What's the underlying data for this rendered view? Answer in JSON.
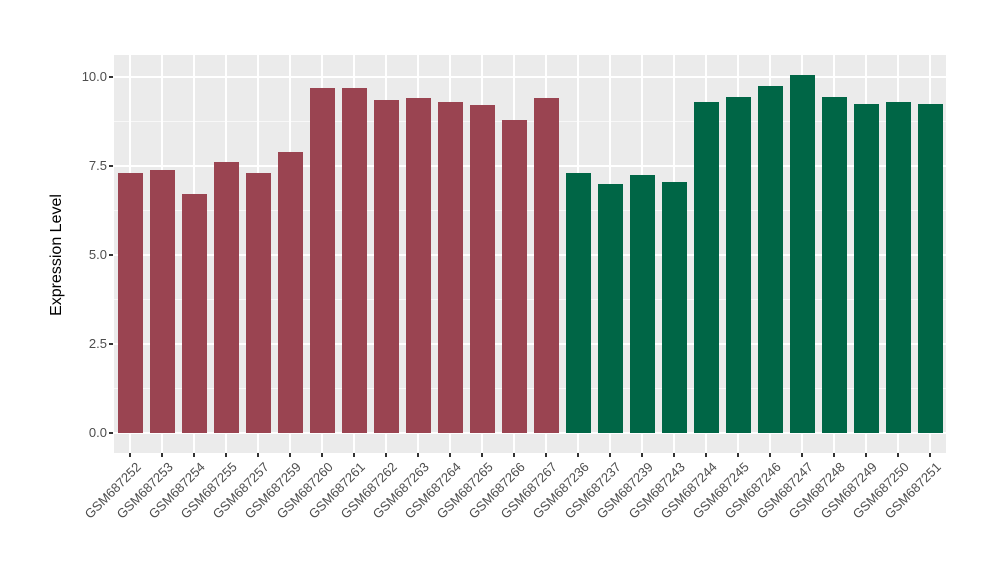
{
  "colors": {
    "figure_background": "#FFFFFF",
    "panel_background": "#EBEBEB",
    "grid_major": "#FFFFFF",
    "grid_minor": "#FFFFFF",
    "axis_text": "#4D4D4D",
    "axis_title": "#000000",
    "tick_mark": "#333333",
    "group1_bar": "#9A4451",
    "group2_bar": "#006646"
  },
  "chart_data": {
    "type": "bar",
    "title": "",
    "xlabel": "",
    "ylabel": "Expression Level",
    "ylim": [
      0,
      10.6
    ],
    "grid": "ggplot2 grey theme: white major/minor horizontal gridlines, white vertical gridlines at each category",
    "legend_position": "none",
    "y_ticks": [
      {
        "value": 0.0,
        "label": "0.0"
      },
      {
        "value": 2.5,
        "label": "2.5"
      },
      {
        "value": 5.0,
        "label": "5.0"
      },
      {
        "value": 7.5,
        "label": "7.5"
      },
      {
        "value": 10.0,
        "label": "10.0"
      }
    ],
    "y_minor_ticks": [
      1.25,
      3.75,
      6.25,
      8.75
    ],
    "bars": [
      {
        "label": "GSM687252",
        "value": 7.3,
        "color": "#9A4451"
      },
      {
        "label": "GSM687253",
        "value": 7.4,
        "color": "#9A4451"
      },
      {
        "label": "GSM687254",
        "value": 6.7,
        "color": "#9A4451"
      },
      {
        "label": "GSM687255",
        "value": 7.6,
        "color": "#9A4451"
      },
      {
        "label": "GSM687257",
        "value": 7.3,
        "color": "#9A4451"
      },
      {
        "label": "GSM687259",
        "value": 7.9,
        "color": "#9A4451"
      },
      {
        "label": "GSM687260",
        "value": 9.7,
        "color": "#9A4451"
      },
      {
        "label": "GSM687261",
        "value": 9.7,
        "color": "#9A4451"
      },
      {
        "label": "GSM687262",
        "value": 9.35,
        "color": "#9A4451"
      },
      {
        "label": "GSM687263",
        "value": 9.4,
        "color": "#9A4451"
      },
      {
        "label": "GSM687264",
        "value": 9.3,
        "color": "#9A4451"
      },
      {
        "label": "GSM687265",
        "value": 9.2,
        "color": "#9A4451"
      },
      {
        "label": "GSM687266",
        "value": 8.8,
        "color": "#9A4451"
      },
      {
        "label": "GSM687267",
        "value": 9.4,
        "color": "#9A4451"
      },
      {
        "label": "GSM687236",
        "value": 7.3,
        "color": "#006646"
      },
      {
        "label": "GSM687237",
        "value": 7.0,
        "color": "#006646"
      },
      {
        "label": "GSM687239",
        "value": 7.25,
        "color": "#006646"
      },
      {
        "label": "GSM687243",
        "value": 7.05,
        "color": "#006646"
      },
      {
        "label": "GSM687244",
        "value": 9.3,
        "color": "#006646"
      },
      {
        "label": "GSM687245",
        "value": 9.45,
        "color": "#006646"
      },
      {
        "label": "GSM687246",
        "value": 9.75,
        "color": "#006646"
      },
      {
        "label": "GSM687247",
        "value": 10.05,
        "color": "#006646"
      },
      {
        "label": "GSM687248",
        "value": 9.45,
        "color": "#006646"
      },
      {
        "label": "GSM687249",
        "value": 9.25,
        "color": "#006646"
      },
      {
        "label": "GSM687250",
        "value": 9.3,
        "color": "#006646"
      },
      {
        "label": "GSM687251",
        "value": 9.25,
        "color": "#006646"
      }
    ]
  }
}
